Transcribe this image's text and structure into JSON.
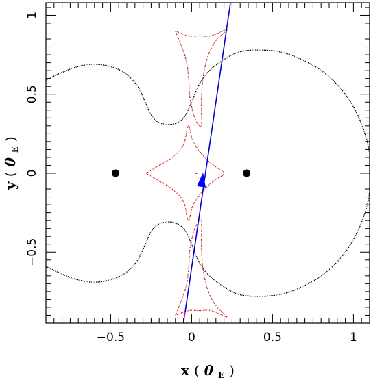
{
  "chart_data": {
    "type": "scatter",
    "xlabel": "x",
    "xlabel_unit": "θ",
    "xlabel_unit_sub": "E",
    "ylabel": "y",
    "ylabel_unit": "θ",
    "ylabel_unit_sub": "E",
    "xlim": [
      -0.9,
      1.1
    ],
    "ylim": [
      -0.95,
      1.08
    ],
    "x_ticks": [
      {
        "value": -0.5,
        "label": "−0.5"
      },
      {
        "value": 0,
        "label": "0"
      },
      {
        "value": 0.5,
        "label": "0.5"
      },
      {
        "value": 1,
        "label": "1"
      }
    ],
    "y_ticks": [
      {
        "value": -0.5,
        "label": "−0.5"
      },
      {
        "value": 0,
        "label": "0"
      },
      {
        "value": 0.5,
        "label": "0.5"
      },
      {
        "value": 1,
        "label": "1"
      }
    ],
    "grid": false,
    "lenses": [
      {
        "x": -0.47,
        "y": 0.0
      },
      {
        "x": 0.34,
        "y": 0.0
      }
    ],
    "source_point": {
      "x": 0.03,
      "y": 0.0
    },
    "critical_curve_upper": [
      [
        -0.9,
        0.59
      ],
      [
        -0.82,
        0.63
      ],
      [
        -0.72,
        0.67
      ],
      [
        -0.62,
        0.69
      ],
      [
        -0.52,
        0.68
      ],
      [
        -0.42,
        0.64
      ],
      [
        -0.34,
        0.56
      ],
      [
        -0.29,
        0.46
      ],
      [
        -0.25,
        0.37
      ],
      [
        -0.2,
        0.32
      ],
      [
        -0.12,
        0.31
      ],
      [
        -0.05,
        0.35
      ],
      [
        0.0,
        0.45
      ],
      [
        0.04,
        0.55
      ],
      [
        0.1,
        0.64
      ],
      [
        0.2,
        0.72
      ],
      [
        0.3,
        0.77
      ],
      [
        0.44,
        0.78
      ],
      [
        0.58,
        0.76
      ],
      [
        0.72,
        0.7
      ],
      [
        0.84,
        0.62
      ],
      [
        0.95,
        0.5
      ],
      [
        1.03,
        0.36
      ],
      [
        1.08,
        0.22
      ],
      [
        1.1,
        0.12
      ]
    ],
    "critical_curve_lower": [
      [
        -0.9,
        -0.59
      ],
      [
        -0.82,
        -0.63
      ],
      [
        -0.72,
        -0.67
      ],
      [
        -0.62,
        -0.69
      ],
      [
        -0.52,
        -0.68
      ],
      [
        -0.42,
        -0.64
      ],
      [
        -0.34,
        -0.56
      ],
      [
        -0.29,
        -0.46
      ],
      [
        -0.25,
        -0.37
      ],
      [
        -0.2,
        -0.32
      ],
      [
        -0.12,
        -0.31
      ],
      [
        -0.05,
        -0.35
      ],
      [
        0.0,
        -0.45
      ],
      [
        0.04,
        -0.55
      ],
      [
        0.1,
        -0.64
      ],
      [
        0.2,
        -0.72
      ],
      [
        0.3,
        -0.77
      ],
      [
        0.44,
        -0.78
      ],
      [
        0.58,
        -0.76
      ],
      [
        0.72,
        -0.7
      ],
      [
        0.84,
        -0.62
      ],
      [
        0.95,
        -0.5
      ],
      [
        1.03,
        -0.36
      ],
      [
        1.08,
        -0.22
      ],
      [
        1.1,
        -0.12
      ]
    ],
    "caustic_central": [
      [
        -0.28,
        0.0
      ],
      [
        -0.2,
        0.05
      ],
      [
        -0.12,
        0.1
      ],
      [
        -0.05,
        0.18
      ],
      [
        -0.02,
        0.3
      ],
      [
        0.01,
        0.2
      ],
      [
        0.08,
        0.1
      ],
      [
        0.15,
        0.04
      ],
      [
        0.2,
        0.0
      ],
      [
        0.15,
        -0.04
      ],
      [
        0.08,
        -0.1
      ],
      [
        0.01,
        -0.2
      ],
      [
        -0.02,
        -0.3
      ],
      [
        -0.05,
        -0.18
      ],
      [
        -0.12,
        -0.1
      ],
      [
        -0.2,
        -0.05
      ],
      [
        -0.28,
        0.0
      ]
    ],
    "caustic_upper": [
      [
        -0.1,
        0.9
      ],
      [
        -0.02,
        0.87
      ],
      [
        0.05,
        0.87
      ],
      [
        0.12,
        0.87
      ],
      [
        0.22,
        0.91
      ],
      [
        0.15,
        0.84
      ],
      [
        0.1,
        0.74
      ],
      [
        0.07,
        0.6
      ],
      [
        0.06,
        0.44
      ],
      [
        0.06,
        0.3
      ],
      [
        0.02,
        0.35
      ],
      [
        -0.01,
        0.48
      ],
      [
        -0.02,
        0.62
      ],
      [
        -0.04,
        0.74
      ],
      [
        -0.1,
        0.9
      ]
    ],
    "caustic_lower": [
      [
        -0.1,
        -0.9
      ],
      [
        -0.02,
        -0.87
      ],
      [
        0.05,
        -0.87
      ],
      [
        0.12,
        -0.87
      ],
      [
        0.22,
        -0.91
      ],
      [
        0.15,
        -0.84
      ],
      [
        0.1,
        -0.74
      ],
      [
        0.07,
        -0.6
      ],
      [
        0.06,
        -0.44
      ],
      [
        0.06,
        -0.3
      ],
      [
        0.02,
        -0.35
      ],
      [
        -0.01,
        -0.48
      ],
      [
        -0.02,
        -0.62
      ],
      [
        -0.04,
        -0.74
      ],
      [
        -0.1,
        -0.9
      ]
    ],
    "source_trajectory": {
      "segments": [
        {
          "color": "#0000cc",
          "from": [
            -0.04,
            -0.88
          ],
          "to": [
            0.24,
            1.08
          ]
        },
        {
          "color": "#e000e0",
          "from": [
            -0.05,
            -0.95
          ],
          "to": [
            -0.04,
            -0.88
          ]
        },
        {
          "color": "#e000e0",
          "from": [
            0.24,
            1.08
          ],
          "to": [
            0.25,
            1.12
          ]
        }
      ],
      "arrow": {
        "x": 0.075,
        "y": -0.03,
        "direction": "down"
      }
    },
    "colors": {
      "critical_curve": "#000000",
      "caustic": "#cc0000",
      "trajectory": "#0000cc",
      "trajectory_ends": "#e000e0",
      "arrow": "#0000ff",
      "lens": "#000000"
    }
  }
}
